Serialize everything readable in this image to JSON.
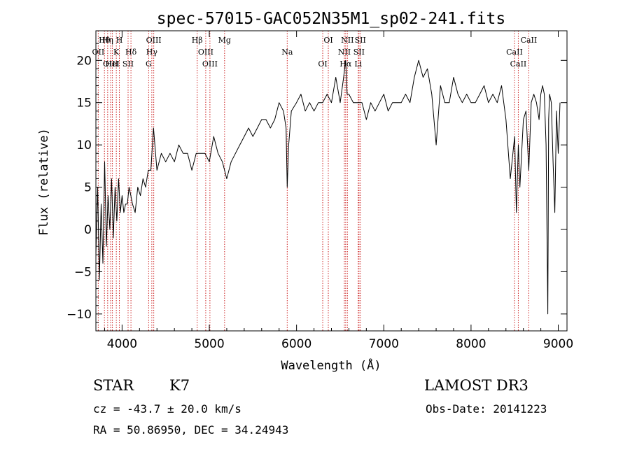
{
  "chart_data": {
    "type": "line",
    "title": "spec-57015-GAC052N35M1_sp02-241.fits",
    "xlabel": "Wavelength (Å)",
    "ylabel": "Flux (relative)",
    "xlim": [
      3700,
      9100
    ],
    "ylim": [
      -12,
      23.5
    ],
    "x_ticks": [
      4000,
      5000,
      6000,
      7000,
      8000,
      9000
    ],
    "y_ticks": [
      -10,
      -5,
      0,
      5,
      10,
      15,
      20
    ],
    "grid": false,
    "series": [
      {
        "name": "spectrum",
        "x": [
          3700,
          3720,
          3740,
          3760,
          3780,
          3800,
          3820,
          3840,
          3860,
          3880,
          3900,
          3920,
          3940,
          3960,
          3980,
          4000,
          4020,
          4040,
          4060,
          4080,
          4100,
          4120,
          4150,
          4180,
          4210,
          4240,
          4270,
          4300,
          4330,
          4360,
          4400,
          4450,
          4500,
          4550,
          4600,
          4650,
          4700,
          4750,
          4800,
          4850,
          4900,
          4950,
          5000,
          5050,
          5100,
          5150,
          5200,
          5250,
          5300,
          5350,
          5400,
          5450,
          5500,
          5550,
          5600,
          5650,
          5700,
          5750,
          5800,
          5850,
          5880,
          5893,
          5910,
          5940,
          6000,
          6050,
          6100,
          6150,
          6200,
          6250,
          6300,
          6350,
          6400,
          6450,
          6500,
          6540,
          6563,
          6580,
          6600,
          6650,
          6700,
          6750,
          6800,
          6850,
          6900,
          6950,
          7000,
          7050,
          7100,
          7150,
          7200,
          7250,
          7300,
          7350,
          7400,
          7450,
          7500,
          7550,
          7600,
          7650,
          7700,
          7750,
          7800,
          7850,
          7900,
          7950,
          8000,
          8050,
          8100,
          8150,
          8200,
          8250,
          8300,
          8350,
          8400,
          8450,
          8500,
          8520,
          8542,
          8560,
          8600,
          8630,
          8662,
          8690,
          8720,
          8750,
          8780,
          8800,
          8820,
          8840,
          8860,
          8880,
          8890,
          8900,
          8920,
          8940,
          8960,
          8980,
          9000,
          9020
        ],
        "y": [
          -3,
          5,
          -6,
          3,
          -4,
          8,
          -2,
          4,
          0,
          6,
          -1,
          5,
          1,
          6,
          2,
          4,
          2,
          3,
          3,
          5,
          4,
          3,
          2,
          5,
          4,
          6,
          5,
          7,
          7,
          12,
          7,
          9,
          8,
          9,
          8,
          10,
          9,
          9,
          7,
          9,
          9,
          9,
          8,
          11,
          9,
          8,
          6,
          8,
          9,
          10,
          11,
          12,
          11,
          12,
          13,
          13,
          12,
          13,
          15,
          14,
          12,
          5,
          10,
          14,
          15,
          16,
          14,
          15,
          14,
          15,
          15,
          16,
          15,
          18,
          15,
          18,
          20,
          16,
          16,
          15,
          15,
          15,
          13,
          15,
          14,
          15,
          16,
          14,
          15,
          15,
          15,
          16,
          15,
          18,
          20,
          18,
          19,
          16,
          10,
          17,
          15,
          15,
          18,
          16,
          15,
          16,
          15,
          15,
          16,
          17,
          15,
          16,
          15,
          17,
          13,
          6,
          11,
          2,
          10,
          5,
          13,
          14,
          7,
          15,
          16,
          15,
          13,
          16,
          17,
          16,
          10,
          -10,
          13,
          16,
          15,
          8,
          2,
          14,
          9,
          15
        ]
      }
    ],
    "lines": [
      {
        "label": "Hθ",
        "wl": 3798
      },
      {
        "label": "OII",
        "wl": 3727
      },
      {
        "label": "OIII",
        "wl": 3869
      },
      {
        "label": "Hη",
        "wl": 3835
      },
      {
        "label": "K",
        "wl": 3934
      },
      {
        "label": "HeI",
        "wl": 3889
      },
      {
        "label": "H",
        "wl": 3969
      },
      {
        "label": "Hδ",
        "wl": 4102
      },
      {
        "label": "SII",
        "wl": 4069
      },
      {
        "label": "OIII",
        "wl": 4363
      },
      {
        "label": "Hγ",
        "wl": 4341
      },
      {
        "label": "G",
        "wl": 4305
      },
      {
        "label": "Hβ",
        "wl": 4861
      },
      {
        "label": "OIII",
        "wl": 4959
      },
      {
        "label": "OIII",
        "wl": 5007
      },
      {
        "label": "Mg",
        "wl": 5175
      },
      {
        "label": "Na",
        "wl": 5893
      },
      {
        "label": "OI",
        "wl": 6300
      },
      {
        "label": "OI",
        "wl": 6364
      },
      {
        "label": "NII",
        "wl": 6548
      },
      {
        "label": "Hα",
        "wl": 6563
      },
      {
        "label": "NII",
        "wl": 6583
      },
      {
        "label": "SII",
        "wl": 6716
      },
      {
        "label": "Li",
        "wl": 6707
      },
      {
        "label": "SII",
        "wl": 6731
      },
      {
        "label": "CaII",
        "wl": 8498
      },
      {
        "label": "CaII",
        "wl": 8542
      },
      {
        "label": "CaII",
        "wl": 8662
      }
    ]
  },
  "info": {
    "class_label": "STAR",
    "subclass": "K7",
    "survey": "LAMOST DR3",
    "velocity": "cz = -43.7 ± 20.0 km/s",
    "obs_date": "Obs-Date: 20141223",
    "coords": "RA =  50.86950, DEC =  34.24943"
  }
}
